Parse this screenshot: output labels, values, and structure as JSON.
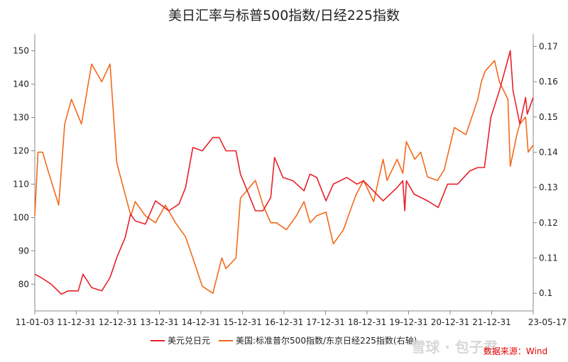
{
  "chart_data": {
    "type": "line",
    "title": "美日汇率与标普500指数/日经225指数",
    "x_ticks": [
      "11-01-03",
      "11-12-31",
      "12-12-31",
      "13-12-31",
      "14-12-31",
      "15-12-31",
      "16-12-31",
      "17-12-31",
      "18-12-31",
      "19-12-31",
      "20-12-31",
      "21-12-31",
      "23-05-17"
    ],
    "xlim": [
      "2011-01-03",
      "2023-05-17"
    ],
    "y_left": {
      "ticks": [
        "80",
        "90",
        "100",
        "110",
        "120",
        "130",
        "140",
        "150"
      ],
      "ylim": [
        72,
        155
      ]
    },
    "y_right": {
      "ticks": [
        "0.1",
        "0.11",
        "0.12",
        "0.13",
        "0.14",
        "0.15",
        "0.16",
        "0.17"
      ],
      "ylim": [
        0.095,
        0.1735
      ]
    },
    "series": [
      {
        "name": "美元兑日元",
        "axis": "left",
        "color": "#e8202a",
        "x": [
          "2011-01-03",
          "2011-03-01",
          "2011-06-01",
          "2011-09-01",
          "2011-10-31",
          "2012-02-01",
          "2012-03-15",
          "2012-06-01",
          "2012-09-01",
          "2012-11-15",
          "2013-01-15",
          "2013-04-01",
          "2013-05-20",
          "2013-07-01",
          "2013-10-01",
          "2014-01-01",
          "2014-05-01",
          "2014-08-01",
          "2014-10-01",
          "2014-12-05",
          "2015-03-01",
          "2015-06-05",
          "2015-08-01",
          "2015-10-01",
          "2015-12-31",
          "2016-02-10",
          "2016-06-24",
          "2016-09-01",
          "2016-11-10",
          "2016-12-15",
          "2017-03-01",
          "2017-06-01",
          "2017-09-08",
          "2017-11-01",
          "2018-01-01",
          "2018-03-26",
          "2018-06-01",
          "2018-10-01",
          "2018-12-31",
          "2019-03-01",
          "2019-08-26",
          "2019-12-31",
          "2020-02-20",
          "2020-03-09",
          "2020-03-24",
          "2020-06-01",
          "2020-10-01",
          "2021-01-06",
          "2021-04-01",
          "2021-07-01",
          "2021-10-20",
          "2021-12-31",
          "2022-03-01",
          "2022-04-28",
          "2022-07-14",
          "2022-10-21",
          "2022-11-15",
          "2023-01-16",
          "2023-03-09",
          "2023-03-24",
          "2023-05-17"
        ],
        "y": [
          83,
          82,
          80,
          77,
          78,
          78,
          83,
          79,
          78,
          82,
          88,
          94,
          101,
          99,
          98,
          105,
          102,
          104,
          109,
          121,
          120,
          124,
          124,
          120,
          120,
          113,
          102,
          102,
          106,
          118,
          112,
          111,
          108,
          113,
          112,
          105,
          110,
          112,
          110,
          111,
          105,
          109,
          111,
          102,
          111,
          107,
          105,
          103,
          110,
          110,
          114,
          115,
          115,
          130,
          138,
          150,
          138,
          128,
          136,
          131,
          136
        ]
      },
      {
        "name": "美国:标准普尔500指数/东京日经225指数(右轴)",
        "axis": "right",
        "color": "#f26a1b",
        "x": [
          "2011-01-03",
          "2011-02-01",
          "2011-03-15",
          "2011-05-01",
          "2011-08-08",
          "2011-10-01",
          "2011-12-01",
          "2012-03-01",
          "2012-06-01",
          "2012-09-01",
          "2012-11-15",
          "2013-01-15",
          "2013-04-01",
          "2013-05-23",
          "2013-07-01",
          "2013-10-01",
          "2014-01-01",
          "2014-04-01",
          "2014-07-01",
          "2014-10-01",
          "2014-12-05",
          "2015-03-01",
          "2015-06-05",
          "2015-08-25",
          "2015-10-01",
          "2015-12-31",
          "2016-02-10",
          "2016-06-24",
          "2016-09-01",
          "2016-11-10",
          "2017-01-01",
          "2017-04-01",
          "2017-07-01",
          "2017-09-08",
          "2017-11-01",
          "2018-01-01",
          "2018-03-26",
          "2018-06-01",
          "2018-09-01",
          "2018-10-15",
          "2018-12-24",
          "2019-03-01",
          "2019-06-01",
          "2019-08-26",
          "2019-10-01",
          "2019-12-31",
          "2020-02-20",
          "2020-03-23",
          "2020-06-08",
          "2020-08-01",
          "2020-10-01",
          "2020-12-31",
          "2021-03-01",
          "2021-06-01",
          "2021-09-14",
          "2021-12-31",
          "2022-02-01",
          "2022-03-08",
          "2022-06-01",
          "2022-07-14",
          "2022-09-30",
          "2022-10-21",
          "2022-12-20",
          "2023-01-16",
          "2023-03-09",
          "2023-04-01",
          "2023-05-17"
        ],
        "y": [
          0.122,
          0.14,
          0.14,
          0.135,
          0.125,
          0.148,
          0.155,
          0.148,
          0.165,
          0.16,
          0.165,
          0.137,
          0.128,
          0.122,
          0.126,
          0.122,
          0.12,
          0.125,
          0.12,
          0.116,
          0.11,
          0.102,
          0.1,
          0.11,
          0.107,
          0.11,
          0.127,
          0.132,
          0.125,
          0.12,
          0.12,
          0.118,
          0.122,
          0.126,
          0.12,
          0.122,
          0.123,
          0.114,
          0.118,
          0.122,
          0.128,
          0.132,
          0.126,
          0.138,
          0.132,
          0.138,
          0.134,
          0.143,
          0.138,
          0.14,
          0.133,
          0.132,
          0.135,
          0.147,
          0.145,
          0.155,
          0.16,
          0.163,
          0.166,
          0.16,
          0.155,
          0.136,
          0.145,
          0.148,
          0.15,
          0.14,
          0.142
        ]
      }
    ],
    "legend_position": "bottom",
    "grid": false,
    "source_label": "数据来源：Wind",
    "watermark": "雪球 · 包子君"
  }
}
